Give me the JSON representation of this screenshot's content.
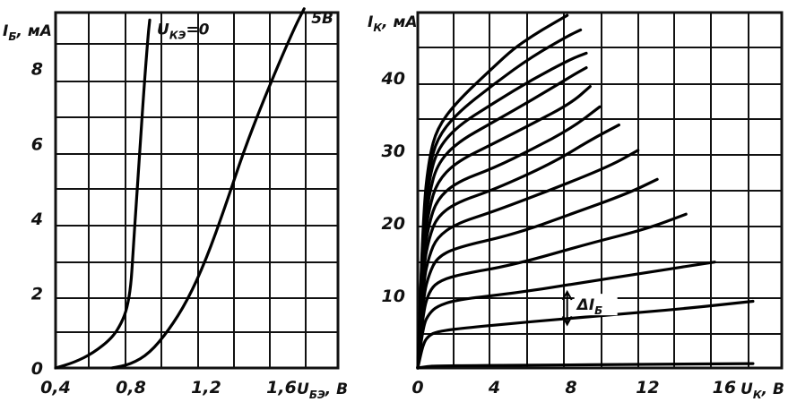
{
  "chart_data": [
    {
      "type": "line",
      "ylabel": "I",
      "ylabel_sub": "Б",
      "ylabel_unit": ", мА",
      "xlabel": "U",
      "xlabel_sub": "БЭ",
      "xlabel_unit": ", В",
      "xlim": [
        0.4,
        1.9
      ],
      "ylim": [
        0,
        9.5
      ],
      "grid": true,
      "x_ticks": [
        {
          "value": 0.4,
          "label": "0,4"
        },
        {
          "value": 0.8,
          "label": "0,8"
        },
        {
          "value": 1.2,
          "label": "1,2"
        },
        {
          "value": 1.6,
          "label": "1,6"
        }
      ],
      "y_ticks": [
        {
          "value": 0,
          "label": "0"
        },
        {
          "value": 2,
          "label": "2"
        },
        {
          "value": 4,
          "label": "4"
        },
        {
          "value": 6,
          "label": "6"
        },
        {
          "value": 8,
          "label": "8"
        }
      ],
      "series": [
        {
          "name": "U",
          "name_sub": "КЭ",
          "name_suffix": "=0",
          "points": [
            [
              0.4,
              0
            ],
            [
              0.5,
              0.15
            ],
            [
              0.6,
              0.4
            ],
            [
              0.7,
              0.8
            ],
            [
              0.75,
              1.2
            ],
            [
              0.78,
              1.6
            ],
            [
              0.8,
              2.2
            ],
            [
              0.81,
              3.0
            ],
            [
              0.83,
              4.5
            ],
            [
              0.85,
              6.0
            ],
            [
              0.87,
              7.5
            ],
            [
              0.89,
              8.8
            ],
            [
              0.9,
              9.3
            ]
          ]
        },
        {
          "name": "5В",
          "points": [
            [
              0.7,
              0
            ],
            [
              0.8,
              0.1
            ],
            [
              0.9,
              0.4
            ],
            [
              1.0,
              1.0
            ],
            [
              1.1,
              1.8
            ],
            [
              1.2,
              2.9
            ],
            [
              1.3,
              4.3
            ],
            [
              1.4,
              5.8
            ],
            [
              1.5,
              7.1
            ],
            [
              1.6,
              8.3
            ],
            [
              1.67,
              9.1
            ],
            [
              1.72,
              9.6
            ]
          ]
        }
      ]
    },
    {
      "type": "line",
      "ylabel": "I",
      "ylabel_sub": "К",
      "ylabel_unit": ", мА",
      "xlabel": "U",
      "xlabel_sub": "К",
      "xlabel_unit": ", В",
      "xlim": [
        0,
        19
      ],
      "ylim": [
        0,
        49
      ],
      "grid": true,
      "x_ticks": [
        {
          "value": 0,
          "label": "0"
        },
        {
          "value": 4,
          "label": "4"
        },
        {
          "value": 8,
          "label": "8"
        },
        {
          "value": 12,
          "label": "12"
        },
        {
          "value": 16,
          "label": "16"
        }
      ],
      "y_ticks": [
        {
          "value": 10,
          "label": "10"
        },
        {
          "value": 20,
          "label": "20"
        },
        {
          "value": 30,
          "label": "30"
        },
        {
          "value": 40,
          "label": "40"
        }
      ],
      "annotation": {
        "text": "ΔI",
        "sub": "Б",
        "x": 7.8,
        "y_from": 10.5,
        "y_to": 6.0
      },
      "series": [
        {
          "points": [
            [
              0,
              0
            ],
            [
              0.5,
              0.2
            ],
            [
              1,
              0.3
            ],
            [
              6,
              0.4
            ],
            [
              12,
              0.5
            ],
            [
              17.5,
              0.6
            ]
          ]
        },
        {
          "points": [
            [
              0,
              0
            ],
            [
              0.3,
              3.5
            ],
            [
              0.6,
              4.5
            ],
            [
              1,
              5.0
            ],
            [
              2,
              5.4
            ],
            [
              6,
              6.4
            ],
            [
              10,
              7.3
            ],
            [
              14,
              8.2
            ],
            [
              17.5,
              9.2
            ]
          ]
        },
        {
          "points": [
            [
              0,
              0
            ],
            [
              0.3,
              6
            ],
            [
              0.6,
              7.5
            ],
            [
              1,
              8.5
            ],
            [
              2,
              9.4
            ],
            [
              5,
              10.3
            ],
            [
              8,
              11.5
            ],
            [
              12,
              13.2
            ],
            [
              15.5,
              14.6
            ]
          ]
        },
        {
          "points": [
            [
              0,
              0
            ],
            [
              0.3,
              8
            ],
            [
              0.6,
              10.5
            ],
            [
              1,
              11.8
            ],
            [
              2,
              12.8
            ],
            [
              5,
              14.2
            ],
            [
              9,
              17.2
            ],
            [
              12,
              19.2
            ],
            [
              14,
              21.2
            ]
          ]
        },
        {
          "points": [
            [
              0,
              0
            ],
            [
              0.3,
              10
            ],
            [
              0.6,
              13
            ],
            [
              1,
              15.2
            ],
            [
              2,
              16.6
            ],
            [
              5,
              18.4
            ],
            [
              8,
              21.2
            ],
            [
              11,
              24.1
            ],
            [
              12.5,
              26.0
            ]
          ]
        },
        {
          "points": [
            [
              0,
              0
            ],
            [
              0.3,
              12
            ],
            [
              0.6,
              15.5
            ],
            [
              1,
              18.0
            ],
            [
              2,
              19.9
            ],
            [
              4,
              21.6
            ],
            [
              7,
              24.6
            ],
            [
              10,
              27.8
            ],
            [
              11.5,
              30.0
            ]
          ]
        },
        {
          "points": [
            [
              0,
              0
            ],
            [
              0.3,
              14
            ],
            [
              0.6,
              18
            ],
            [
              1,
              20.8
            ],
            [
              2,
              22.8
            ],
            [
              4,
              24.6
            ],
            [
              7,
              28.2
            ],
            [
              9,
              31.4
            ],
            [
              10.5,
              33.5
            ]
          ]
        },
        {
          "points": [
            [
              0,
              0
            ],
            [
              0.3,
              15.5
            ],
            [
              0.6,
              20
            ],
            [
              1,
              23.2
            ],
            [
              2,
              25.6
            ],
            [
              4,
              27.6
            ],
            [
              6,
              30.2
            ],
            [
              8,
              33.0
            ],
            [
              9.5,
              36.0
            ]
          ]
        },
        {
          "points": [
            [
              0,
              0
            ],
            [
              0.3,
              17
            ],
            [
              0.6,
              22
            ],
            [
              1,
              25.6
            ],
            [
              2,
              28.4
            ],
            [
              4,
              31.0
            ],
            [
              6,
              33.7
            ],
            [
              8,
              36.5
            ],
            [
              9,
              38.8
            ]
          ]
        },
        {
          "points": [
            [
              0,
              0
            ],
            [
              0.3,
              18.5
            ],
            [
              0.6,
              24
            ],
            [
              1,
              28.0
            ],
            [
              2,
              31.0
            ],
            [
              4,
              34.0
            ],
            [
              6,
              37.0
            ],
            [
              8,
              40.2
            ],
            [
              8.8,
              41.4
            ]
          ]
        },
        {
          "points": [
            [
              0,
              0
            ],
            [
              0.3,
              20
            ],
            [
              0.6,
              26
            ],
            [
              1,
              30.0
            ],
            [
              2,
              33.2
            ],
            [
              4,
              36.6
            ],
            [
              6,
              39.8
            ],
            [
              8,
              42.6
            ],
            [
              8.8,
              43.4
            ]
          ]
        },
        {
          "points": [
            [
              0,
              0
            ],
            [
              0.3,
              21
            ],
            [
              0.6,
              27.5
            ],
            [
              1,
              31.6
            ],
            [
              2,
              35.0
            ],
            [
              4,
              39.2
            ],
            [
              6,
              43.0
            ],
            [
              8,
              46.0
            ],
            [
              8.5,
              46.6
            ]
          ]
        },
        {
          "points": [
            [
              0,
              0
            ],
            [
              0.3,
              22
            ],
            [
              0.6,
              29
            ],
            [
              1,
              33.0
            ],
            [
              2,
              36.6
            ],
            [
              4,
              41.6
            ],
            [
              5,
              44.0
            ],
            [
              6,
              45.8
            ],
            [
              7,
              47.4
            ],
            [
              7.8,
              48.6
            ]
          ]
        }
      ]
    }
  ]
}
